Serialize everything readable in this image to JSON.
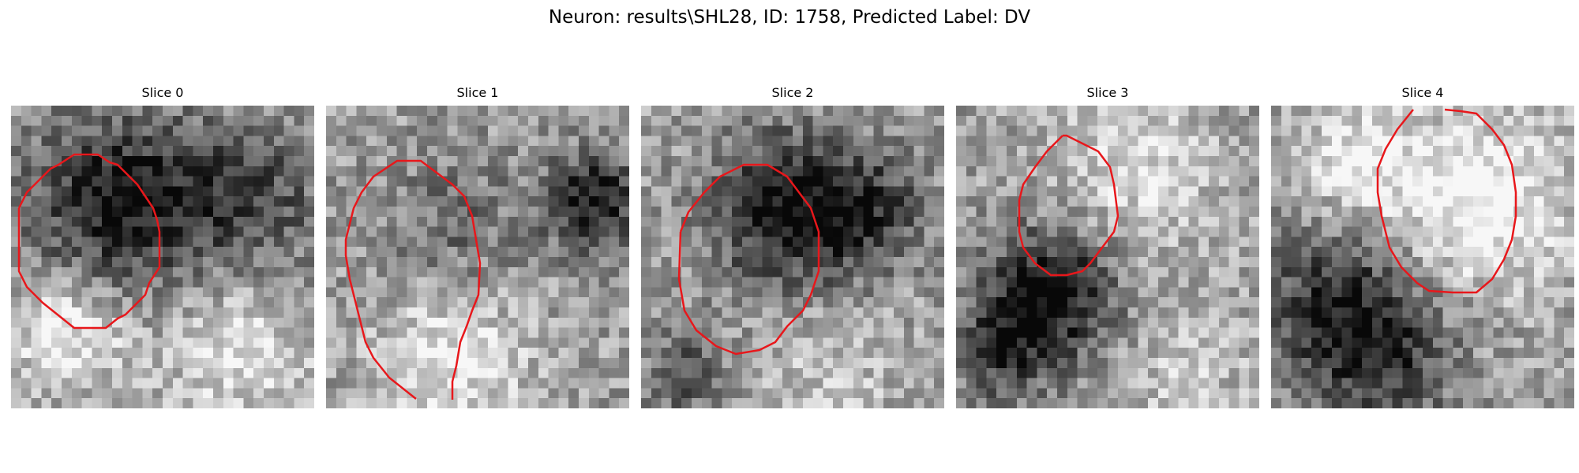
{
  "figure": {
    "title": "Neuron: results\\SHL28, ID: 1758, Predicted Label: DV"
  },
  "slices": [
    {
      "label": "Slice 0"
    },
    {
      "label": "Slice 1"
    },
    {
      "label": "Slice 2"
    },
    {
      "label": "Slice 3"
    },
    {
      "label": "Slice 4"
    }
  ],
  "colors": {
    "contour": "#e8171b",
    "colormap": "grayscale"
  }
}
